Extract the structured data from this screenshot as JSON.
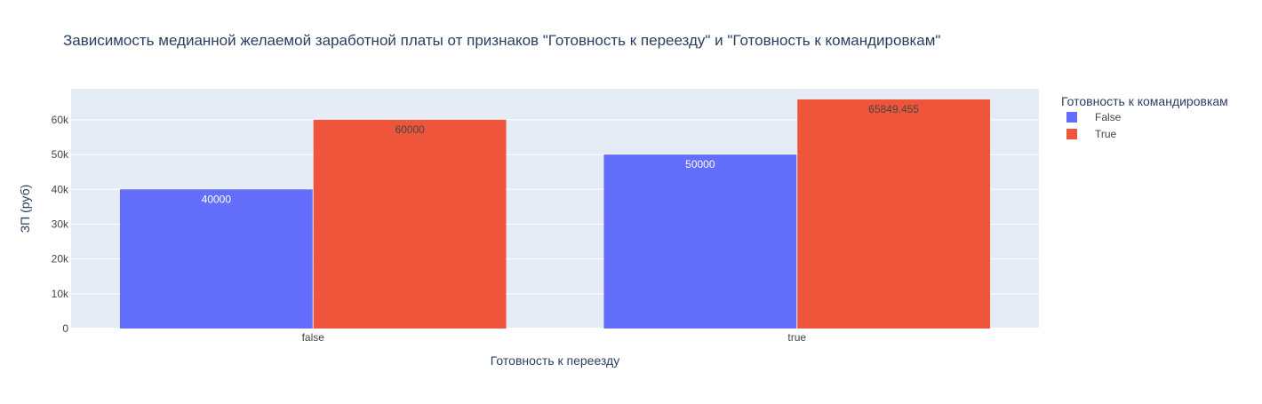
{
  "chart_data": {
    "type": "bar",
    "title": "Зависимость медианной желаемой заработной платы от признаков \"Готовность к переезду\" и \"Готовность к командировкам\"",
    "xlabel": "Готовность к переезду",
    "ylabel": "ЗП (руб)",
    "categories": [
      "false",
      "true"
    ],
    "ylim": [
      0,
      68900
    ],
    "yticks": [
      {
        "value": 0,
        "label": "0"
      },
      {
        "value": 10000,
        "label": "10k"
      },
      {
        "value": 20000,
        "label": "20k"
      },
      {
        "value": 30000,
        "label": "30k"
      },
      {
        "value": 40000,
        "label": "40k"
      },
      {
        "value": 50000,
        "label": "50k"
      },
      {
        "value": 60000,
        "label": "60k"
      }
    ],
    "grid": true,
    "legend": {
      "title": "Готовность к командировкам",
      "position": "right"
    },
    "series": [
      {
        "name": "False",
        "values": [
          40000,
          50000
        ],
        "labels": [
          "40000",
          "50000"
        ],
        "color": "#636efa",
        "label_color": "#ffffff"
      },
      {
        "name": "True",
        "values": [
          60000,
          65849.455
        ],
        "labels": [
          "60000",
          "65849.455"
        ],
        "color": "#ef553b",
        "label_color": "#444444"
      }
    ]
  },
  "colors": {
    "plot_background": "#e5ecf6",
    "grid": "#ffffff",
    "title_text": "#2a3f5f",
    "axis_text": "#2a3f5f",
    "tick_text": "#444444"
  }
}
